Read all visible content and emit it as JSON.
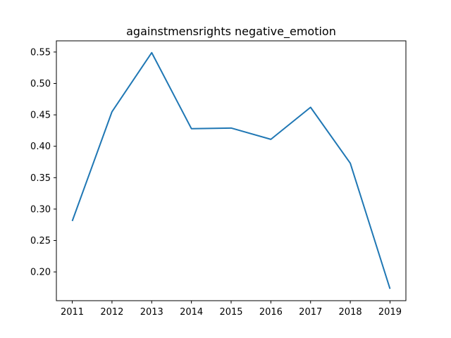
{
  "chart_data": {
    "type": "line",
    "title": "againstmensrights negative_emotion",
    "xlabel": "",
    "ylabel": "",
    "x": [
      2011,
      2012,
      2013,
      2014,
      2015,
      2016,
      2017,
      2018,
      2019
    ],
    "series": [
      {
        "values": [
          0.281,
          0.455,
          0.549,
          0.428,
          0.429,
          0.411,
          0.462,
          0.373,
          0.173
        ]
      }
    ],
    "xticks": [
      "2011",
      "2012",
      "2013",
      "2014",
      "2015",
      "2016",
      "2017",
      "2018",
      "2019"
    ],
    "yticks": [
      "0.20",
      "0.25",
      "0.30",
      "0.35",
      "0.40",
      "0.45",
      "0.50",
      "0.55"
    ],
    "ylim": [
      0.1542,
      0.5678
    ],
    "xlim": [
      2010.6,
      2019.4
    ],
    "grid": false,
    "colors": {
      "line": "#1f77b4",
      "axes": "#000000"
    }
  }
}
